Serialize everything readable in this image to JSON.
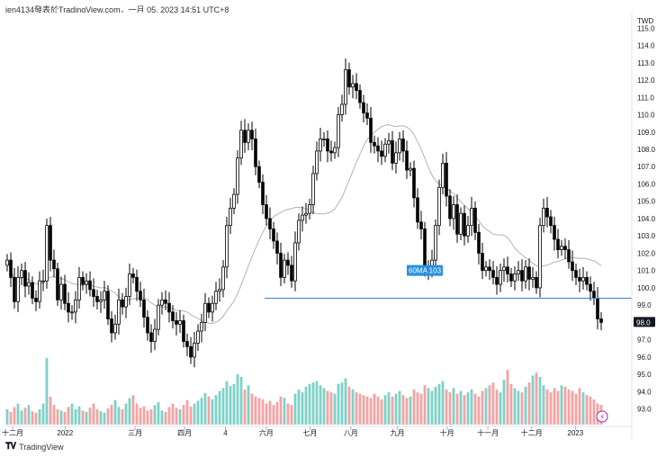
{
  "header": {
    "caption": "jen4134發表於TradingView.com，一月 05, 2023 14:51 UTC+8"
  },
  "footer": {
    "brand": "TradingView"
  },
  "colors": {
    "candle_up_fill": "#ffffff",
    "candle_down_fill": "#000000",
    "candle_outline": "#000000",
    "ma_line": "#b0b3b8",
    "support_line": "#3d7ccf",
    "volume_up": "#7ed1c8",
    "volume_down": "#f2a3a3",
    "last_price_bg": "#131722",
    "ma_label_bg": "#2a8fe0"
  },
  "chart_data": {
    "type": "candlestick",
    "currency_label": "TWD",
    "y_ticks": [
      "115.0",
      "114.0",
      "113.0",
      "112.0",
      "111.0",
      "110.0",
      "109.0",
      "108.0",
      "107.0",
      "106.0",
      "105.0",
      "104.0",
      "103.0",
      "102.0",
      "101.0",
      "100.0",
      "99.0",
      "98.0",
      "97.0",
      "96.0",
      "95.0",
      "94.0",
      "93.0"
    ],
    "ylim": [
      92.2,
      115.9
    ],
    "x_ticks": [
      {
        "label": "十二月",
        "pos": 0
      },
      {
        "label": "2022",
        "pos": 0.09
      },
      {
        "label": "三月",
        "pos": 0.21
      },
      {
        "label": "四月",
        "pos": 0.295
      },
      {
        "label": "4",
        "pos": 0.365
      },
      {
        "label": "六月",
        "pos": 0.435
      },
      {
        "label": "七月",
        "pos": 0.51
      },
      {
        "label": "八月",
        "pos": 0.58
      },
      {
        "label": "九月",
        "pos": 0.66
      },
      {
        "label": "十月",
        "pos": 0.745
      },
      {
        "label": "十一月",
        "pos": 0.815
      },
      {
        "label": "十二月",
        "pos": 0.89
      },
      {
        "label": "2023",
        "pos": 0.965
      }
    ],
    "last_price": "98.0",
    "ma_label": "60MA 103",
    "support_level": 99.4,
    "close_series": [
      101.6,
      100.6,
      99.2,
      100.6,
      101.0,
      100.1,
      100.3,
      99.4,
      99.2,
      100.4,
      100.4,
      103.6,
      101.6,
      101.1,
      99.3,
      100.2,
      99.1,
      98.6,
      98.6,
      99.3,
      100.6,
      100.2,
      100.4,
      99.9,
      99.5,
      99.2,
      99.3,
      99.8,
      98.2,
      97.4,
      97.9,
      99.3,
      98.9,
      99.5,
      100.8,
      100.6,
      99.8,
      99.3,
      98.3,
      97.4,
      96.9,
      97.6,
      99.0,
      99.3,
      99.1,
      98.6,
      98.1,
      97.9,
      98.1,
      96.9,
      96.6,
      96.0,
      96.8,
      97.5,
      98.0,
      99.1,
      98.6,
      99.1,
      99.8,
      99.9,
      101.2,
      103.6,
      104.6,
      105.4,
      107.5,
      109.1,
      108.4,
      109.1,
      108.6,
      107.0,
      106.1,
      104.8,
      104.0,
      103.4,
      102.7,
      102.0,
      100.6,
      101.6,
      101.3,
      100.4,
      102.6,
      103.9,
      104.2,
      104.3,
      104.8,
      106.6,
      107.9,
      108.6,
      108.6,
      107.9,
      107.8,
      108.1,
      110.0,
      110.6,
      112.6,
      111.6,
      111.8,
      111.4,
      110.7,
      110.1,
      109.8,
      108.4,
      108.2,
      107.9,
      107.6,
      108.3,
      108.5,
      107.2,
      107.8,
      108.6,
      107.9,
      106.8,
      106.9,
      105.2,
      103.8,
      103.4,
      101.1,
      101.1,
      101.6,
      103.6,
      105.8,
      107.2,
      105.3,
      104.0,
      104.8,
      103.1,
      104.3,
      103.0,
      103.6,
      104.6,
      103.2,
      102.0,
      101.0,
      101.2,
      101.0,
      100.6,
      100.2,
      101.0,
      101.2,
      100.8,
      100.4,
      100.8,
      101.0,
      100.4,
      101.2,
      100.5,
      100.6,
      100.0,
      103.6,
      104.6,
      104.1,
      103.6,
      102.8,
      102.2,
      102.4,
      102.2,
      101.5,
      101.0,
      100.6,
      100.4,
      100.6,
      100.2,
      99.8,
      99.4,
      98.2,
      98.0
    ],
    "volume_relative": [
      0.22,
      0.18,
      0.25,
      0.3,
      0.2,
      0.24,
      0.28,
      0.19,
      0.17,
      0.22,
      0.3,
      0.95,
      0.4,
      0.28,
      0.22,
      0.2,
      0.18,
      0.25,
      0.3,
      0.22,
      0.26,
      0.2,
      0.18,
      0.24,
      0.3,
      0.22,
      0.19,
      0.17,
      0.23,
      0.28,
      0.35,
      0.25,
      0.22,
      0.3,
      0.38,
      0.42,
      0.3,
      0.24,
      0.26,
      0.2,
      0.22,
      0.28,
      0.32,
      0.2,
      0.18,
      0.25,
      0.3,
      0.24,
      0.22,
      0.28,
      0.35,
      0.26,
      0.3,
      0.34,
      0.38,
      0.45,
      0.4,
      0.36,
      0.42,
      0.48,
      0.52,
      0.62,
      0.55,
      0.58,
      0.72,
      0.68,
      0.5,
      0.56,
      0.44,
      0.4,
      0.38,
      0.36,
      0.3,
      0.34,
      0.28,
      0.32,
      0.4,
      0.38,
      0.3,
      0.28,
      0.44,
      0.5,
      0.46,
      0.54,
      0.58,
      0.6,
      0.62,
      0.56,
      0.52,
      0.48,
      0.46,
      0.44,
      0.58,
      0.6,
      0.66,
      0.54,
      0.5,
      0.46,
      0.44,
      0.42,
      0.4,
      0.38,
      0.44,
      0.4,
      0.36,
      0.42,
      0.46,
      0.4,
      0.44,
      0.48,
      0.42,
      0.38,
      0.4,
      0.5,
      0.46,
      0.44,
      0.56,
      0.52,
      0.48,
      0.54,
      0.58,
      0.62,
      0.5,
      0.46,
      0.52,
      0.44,
      0.48,
      0.42,
      0.46,
      0.5,
      0.44,
      0.4,
      0.48,
      0.52,
      0.56,
      0.6,
      0.5,
      0.46,
      0.64,
      0.78,
      0.58,
      0.52,
      0.48,
      0.46,
      0.54,
      0.6,
      0.7,
      0.74,
      0.68,
      0.56,
      0.5,
      0.46,
      0.52,
      0.48,
      0.56,
      0.54,
      0.5,
      0.48,
      0.44,
      0.52,
      0.46,
      0.42,
      0.4,
      0.36,
      0.3,
      0.28
    ]
  }
}
